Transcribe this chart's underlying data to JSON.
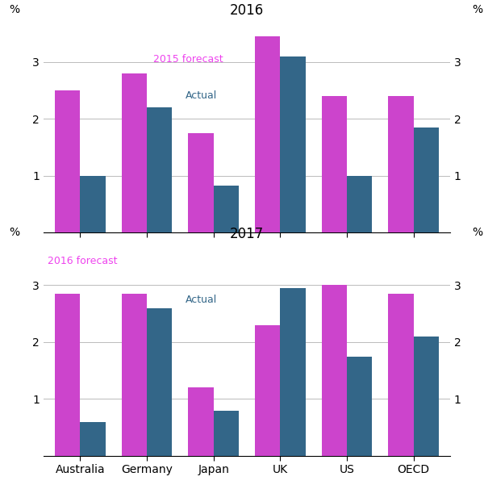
{
  "categories": [
    "Australia",
    "Germany",
    "Japan",
    "UK",
    "US",
    "OECD"
  ],
  "panel1": {
    "title": "2016",
    "forecast_label": "2015 forecast",
    "actual_label": "Actual",
    "forecast": [
      2.5,
      2.8,
      1.75,
      3.45,
      2.4,
      2.4
    ],
    "actual": [
      1.0,
      2.2,
      0.83,
      3.1,
      1.0,
      1.85
    ]
  },
  "panel2": {
    "title": "2017",
    "forecast_label": "2016 forecast",
    "actual_label": "Actual",
    "forecast": [
      2.85,
      2.85,
      1.2,
      2.3,
      3.0,
      2.85
    ],
    "actual": [
      0.6,
      2.6,
      0.8,
      2.95,
      1.75,
      2.1
    ]
  },
  "forecast_color": "#cc44cc",
  "actual_color": "#336688",
  "ylim": [
    0,
    3.75
  ],
  "yticks": [
    1,
    2,
    3
  ],
  "bar_width": 0.38,
  "background_color": "#ffffff",
  "grid_color": "#bbbbbb",
  "forecast_text_color": "#ee44ee",
  "actual_text_color": "#336688"
}
